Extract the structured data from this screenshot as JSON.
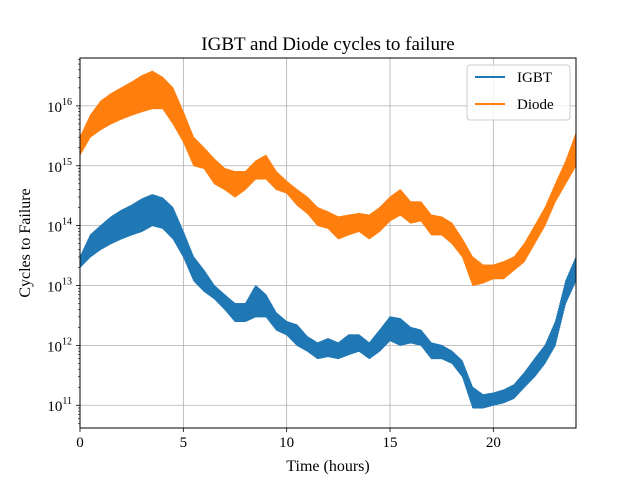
{
  "chart_data": {
    "type": "line",
    "title": "IGBT and Diode cycles to failure",
    "xlabel": "Time (hours)",
    "ylabel": "Cycles to Failure",
    "xlim": [
      0,
      24
    ],
    "ylim_log10": [
      10.62,
      16.8
    ],
    "y_scale": "log",
    "grid": true,
    "legend_position": "top-right",
    "x_ticks": [
      0,
      5,
      10,
      15,
      20
    ],
    "x_tick_labels": [
      "0",
      "5",
      "10",
      "15",
      "20"
    ],
    "y_ticks_log10": [
      11,
      12,
      13,
      14,
      15,
      16
    ],
    "y_tick_labels": [
      {
        "base": "10",
        "exp": "11"
      },
      {
        "base": "10",
        "exp": "12"
      },
      {
        "base": "10",
        "exp": "13"
      },
      {
        "base": "10",
        "exp": "14"
      },
      {
        "base": "10",
        "exp": "15"
      },
      {
        "base": "10",
        "exp": "16"
      }
    ],
    "series": [
      {
        "name": "IGBT",
        "color": "#1f77b4",
        "x": [
          0,
          0.5,
          1,
          1.5,
          2,
          2.5,
          3,
          3.5,
          4,
          4.5,
          5,
          5.5,
          6,
          6.5,
          7,
          7.5,
          8,
          8.5,
          9,
          9.5,
          10,
          10.5,
          11,
          11.5,
          12,
          12.5,
          13,
          13.5,
          14,
          14.5,
          15,
          15.5,
          16,
          16.5,
          17,
          17.5,
          18,
          18.5,
          19,
          19.5,
          20,
          20.5,
          21,
          21.5,
          22,
          22.5,
          23,
          23.5,
          24
        ],
        "y_low": [
          20000000000000.0,
          30000000000000.0,
          40000000000000.0,
          50000000000000.0,
          60000000000000.0,
          70000000000000.0,
          80000000000000.0,
          100000000000000.0,
          90000000000000.0,
          60000000000000.0,
          30000000000000.0,
          12000000000000.0,
          8000000000000.0,
          6000000000000.0,
          4000000000000.0,
          2500000000000.0,
          2500000000000.0,
          3000000000000.0,
          3000000000000.0,
          1800000000000.0,
          1500000000000.0,
          1000000000000.0,
          800000000000.0,
          600000000000.0,
          650000000000.0,
          600000000000.0,
          700000000000.0,
          800000000000.0,
          600000000000.0,
          800000000000.0,
          1200000000000.0,
          1000000000000.0,
          1100000000000.0,
          1000000000000.0,
          600000000000.0,
          600000000000.0,
          500000000000.0,
          300000000000.0,
          90000000000.0,
          90000000000.0,
          100000000000.0,
          110000000000.0,
          130000000000.0,
          200000000000.0,
          300000000000.0,
          500000000000.0,
          1000000000000.0,
          5000000000000.0,
          12000000000000.0
        ],
        "y_high": [
          30000000000000.0,
          70000000000000.0,
          100000000000000.0,
          140000000000000.0,
          180000000000000.0,
          220000000000000.0,
          280000000000000.0,
          330000000000000.0,
          290000000000000.0,
          200000000000000.0,
          80000000000000.0,
          30000000000000.0,
          18000000000000.0,
          10000000000000.0,
          7000000000000.0,
          5000000000000.0,
          5000000000000.0,
          10000000000000.0,
          7000000000000.0,
          3500000000000.0,
          2500000000000.0,
          2200000000000.0,
          1400000000000.0,
          1100000000000.0,
          1300000000000.0,
          1100000000000.0,
          1500000000000.0,
          1500000000000.0,
          1100000000000.0,
          1800000000000.0,
          3000000000000.0,
          2800000000000.0,
          2000000000000.0,
          1800000000000.0,
          1100000000000.0,
          1000000000000.0,
          800000000000.0,
          550000000000.0,
          200000000000.0,
          150000000000.0,
          160000000000.0,
          180000000000.0,
          220000000000.0,
          350000000000.0,
          600000000000.0,
          1000000000000.0,
          2500000000000.0,
          12000000000000.0,
          30000000000000.0
        ]
      },
      {
        "name": "Diode",
        "color": "#ff7f0e",
        "x": [
          0,
          0.5,
          1,
          1.5,
          2,
          2.5,
          3,
          3.5,
          4,
          4.5,
          5,
          5.5,
          6,
          6.5,
          7,
          7.5,
          8,
          8.5,
          9,
          9.5,
          10,
          10.5,
          11,
          11.5,
          12,
          12.5,
          13,
          13.5,
          14,
          14.5,
          15,
          15.5,
          16,
          16.5,
          17,
          17.5,
          18,
          18.5,
          19,
          19.5,
          20,
          20.5,
          21,
          21.5,
          22,
          22.5,
          23,
          23.5,
          24
        ],
        "y_low": [
          1500000000000000.0,
          3000000000000000.0,
          4000000000000000.0,
          5000000000000000.0,
          6000000000000000.0,
          7000000000000000.0,
          8000000000000000.0,
          9000000000000000.0,
          9000000000000000.0,
          5000000000000000.0,
          2500000000000000.0,
          1000000000000000.0,
          900000000000000.0,
          500000000000000.0,
          400000000000000.0,
          300000000000000.0,
          400000000000000.0,
          600000000000000.0,
          600000000000000.0,
          400000000000000.0,
          350000000000000.0,
          220000000000000.0,
          160000000000000.0,
          100000000000000.0,
          90000000000000.0,
          60000000000000.0,
          70000000000000.0,
          80000000000000.0,
          60000000000000.0,
          80000000000000.0,
          120000000000000.0,
          150000000000000.0,
          110000000000000.0,
          120000000000000.0,
          70000000000000.0,
          70000000000000.0,
          50000000000000.0,
          30000000000000.0,
          10000000000000.0,
          11000000000000.0,
          13000000000000.0,
          13000000000000.0,
          18000000000000.0,
          25000000000000.0,
          50000000000000.0,
          100000000000000.0,
          250000000000000.0,
          500000000000000.0,
          1000000000000000.0
        ],
        "y_high": [
          3000000000000000.0,
          7000000000000000.0,
          1.2e+16,
          1.6e+16,
          2e+16,
          2.5e+16,
          3.2e+16,
          3.8e+16,
          3e+16,
          2e+16,
          8000000000000000.0,
          3000000000000000.0,
          2000000000000000.0,
          1300000000000000.0,
          900000000000000.0,
          800000000000000.0,
          800000000000000.0,
          1200000000000000.0,
          1500000000000000.0,
          800000000000000.0,
          550000000000000.0,
          400000000000000.0,
          300000000000000.0,
          200000000000000.0,
          170000000000000.0,
          140000000000000.0,
          150000000000000.0,
          160000000000000.0,
          150000000000000.0,
          200000000000000.0,
          300000000000000.0,
          400000000000000.0,
          250000000000000.0,
          250000000000000.0,
          150000000000000.0,
          140000000000000.0,
          110000000000000.0,
          60000000000000.0,
          30000000000000.0,
          22000000000000.0,
          22000000000000.0,
          25000000000000.0,
          30000000000000.0,
          50000000000000.0,
          100000000000000.0,
          200000000000000.0,
          500000000000000.0,
          1200000000000000.0,
          3500000000000000.0
        ]
      }
    ]
  }
}
